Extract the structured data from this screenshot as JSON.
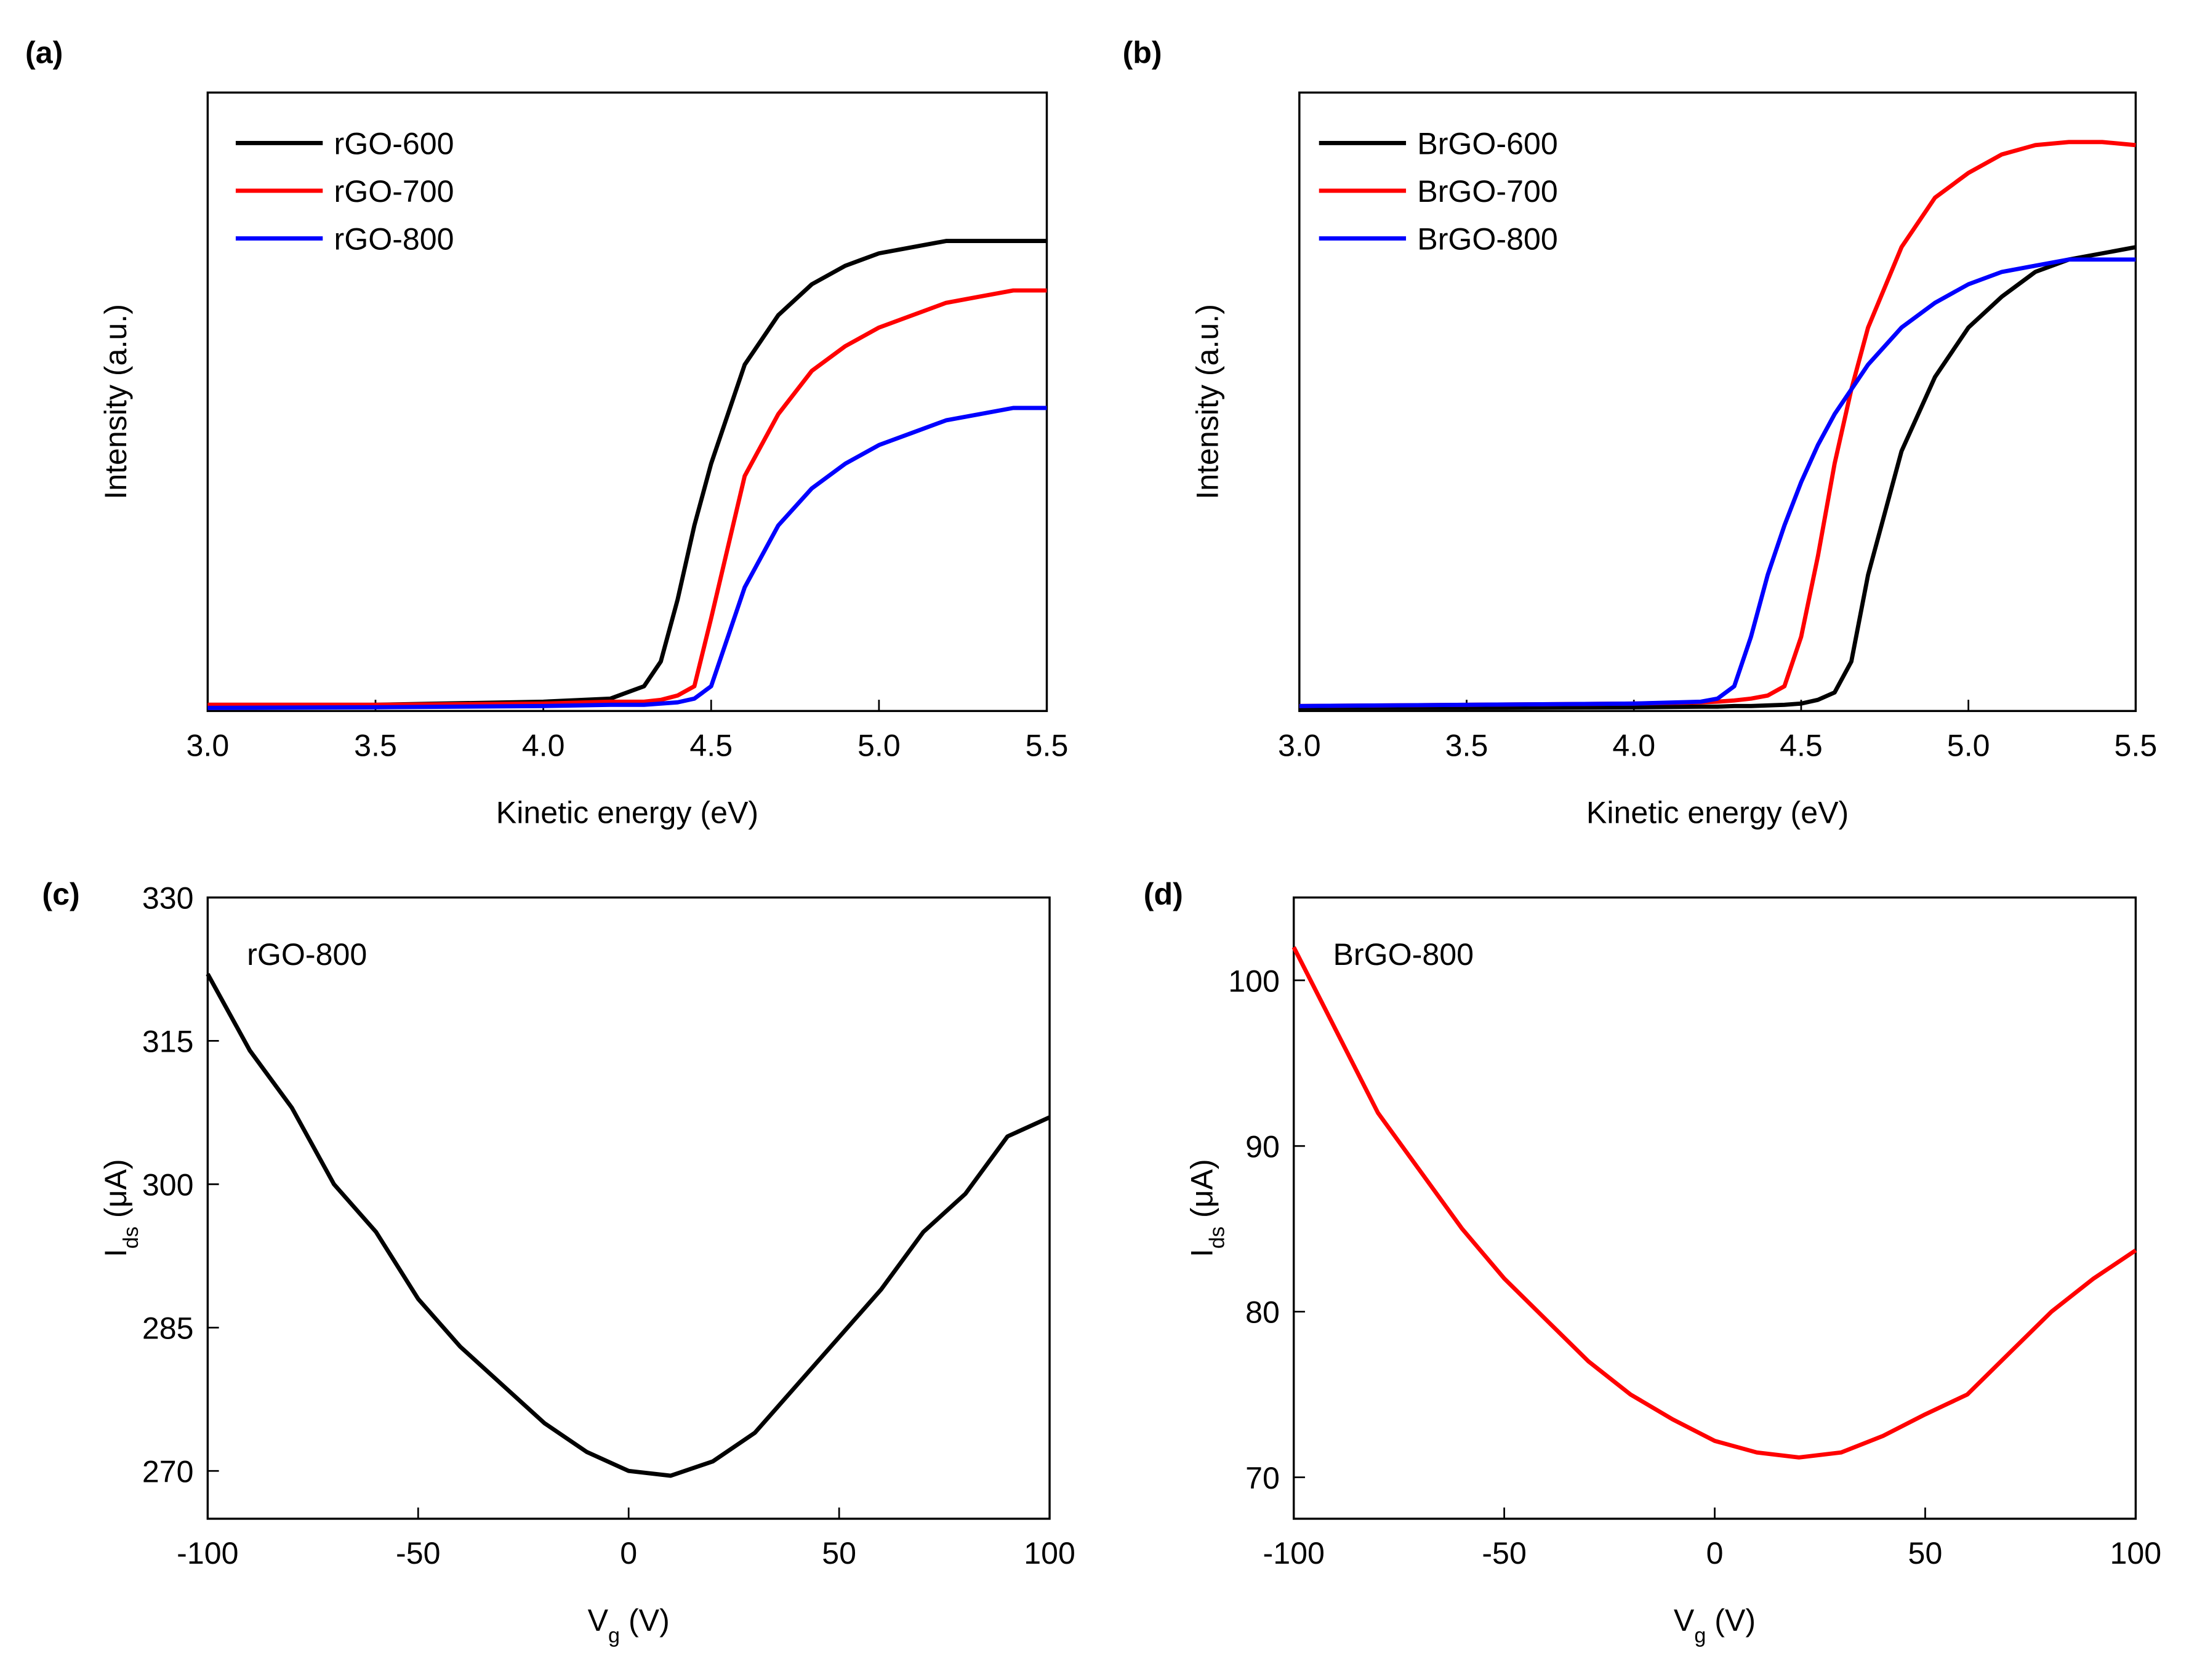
{
  "chart_data": [
    {
      "type": "line",
      "panel": "(a)",
      "xlabel": "Kinetic energy (eV)",
      "ylabel": "Intensity (a.u.)",
      "xlim": [
        3.0,
        5.5
      ],
      "ylim": [
        0,
        1
      ],
      "xticks": [
        {
          "value": 3.0,
          "label": "3.0"
        },
        {
          "value": 3.5,
          "label": "3.5"
        },
        {
          "value": 4.0,
          "label": "4.0"
        },
        {
          "value": 4.5,
          "label": "4.5"
        },
        {
          "value": 5.0,
          "label": "5.0"
        },
        {
          "value": 5.5,
          "label": "5.5"
        }
      ],
      "x": [
        3.0,
        3.5,
        4.0,
        4.2,
        4.3,
        4.35,
        4.4,
        4.45,
        4.5,
        4.6,
        4.7,
        4.8,
        4.9,
        5.0,
        5.1,
        5.2,
        5.3,
        5.4,
        5.5
      ],
      "series": [
        {
          "name": "rGO-600",
          "color": "#000000",
          "values": [
            0.01,
            0.01,
            0.015,
            0.02,
            0.04,
            0.08,
            0.18,
            0.3,
            0.4,
            0.56,
            0.64,
            0.69,
            0.72,
            0.74,
            0.75,
            0.76,
            0.76,
            0.76,
            0.76
          ]
        },
        {
          "name": "rGO-700",
          "color": "#ff0000",
          "values": [
            0.01,
            0.01,
            0.012,
            0.015,
            0.015,
            0.018,
            0.025,
            0.04,
            0.15,
            0.38,
            0.48,
            0.55,
            0.59,
            0.62,
            0.64,
            0.66,
            0.67,
            0.68,
            0.68
          ]
        },
        {
          "name": "rGO-800",
          "color": "#0000ff",
          "values": [
            0.005,
            0.006,
            0.008,
            0.01,
            0.01,
            0.012,
            0.014,
            0.02,
            0.04,
            0.2,
            0.3,
            0.36,
            0.4,
            0.43,
            0.45,
            0.47,
            0.48,
            0.49,
            0.49
          ]
        }
      ],
      "legend": "upper left"
    },
    {
      "type": "line",
      "panel": "(b)",
      "xlabel": "Kinetic energy (eV)",
      "ylabel": "Intensity (a.u.)",
      "xlim": [
        3.0,
        5.5
      ],
      "ylim": [
        0,
        1
      ],
      "xticks": [
        {
          "value": 3.0,
          "label": "3.0"
        },
        {
          "value": 3.5,
          "label": "3.5"
        },
        {
          "value": 4.0,
          "label": "4.0"
        },
        {
          "value": 4.5,
          "label": "4.5"
        },
        {
          "value": 5.0,
          "label": "5.0"
        },
        {
          "value": 5.5,
          "label": "5.5"
        }
      ],
      "x": [
        3.0,
        3.5,
        4.0,
        4.2,
        4.25,
        4.3,
        4.35,
        4.4,
        4.45,
        4.5,
        4.55,
        4.6,
        4.65,
        4.7,
        4.8,
        4.9,
        5.0,
        5.1,
        5.2,
        5.3,
        5.4,
        5.5
      ],
      "series": [
        {
          "name": "BrGO-600",
          "color": "#000000",
          "values": [
            0.005,
            0.005,
            0.006,
            0.007,
            0.007,
            0.008,
            0.008,
            0.009,
            0.01,
            0.012,
            0.018,
            0.03,
            0.08,
            0.22,
            0.42,
            0.54,
            0.62,
            0.67,
            0.71,
            0.73,
            0.74,
            0.75
          ]
        },
        {
          "name": "BrGO-700",
          "color": "#ff0000",
          "values": [
            0.008,
            0.01,
            0.012,
            0.014,
            0.015,
            0.017,
            0.02,
            0.025,
            0.04,
            0.12,
            0.25,
            0.4,
            0.52,
            0.62,
            0.75,
            0.83,
            0.87,
            0.9,
            0.915,
            0.92,
            0.92,
            0.915
          ]
        },
        {
          "name": "BrGO-800",
          "color": "#0000ff",
          "values": [
            0.008,
            0.01,
            0.012,
            0.015,
            0.02,
            0.04,
            0.12,
            0.22,
            0.3,
            0.37,
            0.43,
            0.48,
            0.52,
            0.56,
            0.62,
            0.66,
            0.69,
            0.71,
            0.72,
            0.73,
            0.73,
            0.73
          ]
        }
      ],
      "legend": "upper left"
    },
    {
      "type": "line",
      "panel": "(c)",
      "xlabel": {
        "main": "V",
        "sub": "g",
        "rest": " (V)"
      },
      "ylabel": {
        "main": "I",
        "sub": "ds",
        "rest": " (μA)"
      },
      "annotation": "rGO-800",
      "xlim": [
        -100,
        100
      ],
      "ylim": [
        265,
        330
      ],
      "xticks": [
        -100,
        -50,
        0,
        50,
        100
      ],
      "yticks": [
        270,
        285,
        300,
        315,
        330
      ],
      "x": [
        -100,
        -90,
        -80,
        -70,
        -60,
        -50,
        -40,
        -30,
        -20,
        -10,
        0,
        10,
        20,
        30,
        40,
        50,
        60,
        70,
        80,
        90,
        100
      ],
      "series": [
        {
          "name": "rGO-800",
          "color": "#000000",
          "values": [
            322,
            314,
            308,
            300,
            295,
            288,
            283,
            279,
            275,
            272,
            270,
            269.5,
            271,
            274,
            279,
            284,
            289,
            295,
            299,
            305,
            307
          ]
        }
      ]
    },
    {
      "type": "line",
      "panel": "(d)",
      "xlabel": {
        "main": "V",
        "sub": "g",
        "rest": " (V)"
      },
      "ylabel": {
        "main": "I",
        "sub": "ds",
        "rest": " (μA)"
      },
      "annotation": "BrGO-800",
      "xlim": [
        -100,
        100
      ],
      "ylim": [
        67.5,
        105
      ],
      "xticks": [
        -100,
        -50,
        0,
        50,
        100
      ],
      "yticks": [
        70,
        80,
        90,
        100
      ],
      "x": [
        -100,
        -90,
        -80,
        -70,
        -60,
        -50,
        -40,
        -30,
        -20,
        -10,
        0,
        10,
        20,
        30,
        40,
        50,
        60,
        70,
        80,
        90,
        100
      ],
      "series": [
        {
          "name": "BrGO-800",
          "color": "#ff0000",
          "values": [
            102,
            97,
            92,
            88.5,
            85,
            82,
            79.5,
            77,
            75,
            73.5,
            72.2,
            71.5,
            71.2,
            71.5,
            72.5,
            73.8,
            75,
            77.5,
            80,
            82,
            83.7
          ]
        }
      ]
    }
  ]
}
